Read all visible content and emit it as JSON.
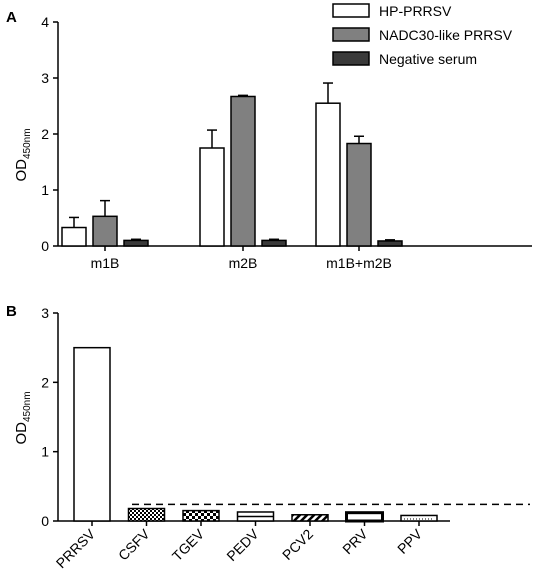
{
  "chart_data": [
    {
      "type": "bar",
      "panel": "A",
      "ylabel": "OD",
      "ylabel_sub": "450nm",
      "ylim": [
        0,
        4
      ],
      "yticks": [
        "0",
        "1",
        "2",
        "3",
        "4"
      ],
      "categories": [
        "m1B",
        "m2B",
        "m1B+m2B"
      ],
      "series": [
        {
          "name": "HP-PRRSV",
          "values": [
            0.33,
            1.75,
            2.55
          ],
          "errors": [
            0.18,
            0.32,
            0.36
          ],
          "color": "#ffffff"
        },
        {
          "name": "NADC30-like PRRSV",
          "values": [
            0.53,
            2.67,
            1.83
          ],
          "errors": [
            0.28,
            0.02,
            0.13
          ],
          "color": "#808080"
        },
        {
          "name": "Negative serum",
          "values": [
            0.1,
            0.1,
            0.09
          ],
          "errors": [
            0.02,
            0.02,
            0.02
          ],
          "color": "#3a3a3a"
        }
      ],
      "legend": "top-right",
      "grid": false
    },
    {
      "type": "bar",
      "panel": "B",
      "ylabel": "OD",
      "ylabel_sub": "450nm",
      "ylim": [
        0,
        3
      ],
      "yticks": [
        "0",
        "1",
        "2",
        "3"
      ],
      "categories": [
        "PRRSV",
        "CSFV",
        "TGEV",
        "PEDV",
        "PCV2",
        "PRV",
        "PPV"
      ],
      "values": [
        2.5,
        0.18,
        0.15,
        0.13,
        0.09,
        0.12,
        0.08
      ],
      "patterns": [
        "none",
        "checker",
        "dense-checker",
        "horizontal-line",
        "diagonal",
        "thick-border",
        "dotted-bottom"
      ],
      "cutoff": 0.24,
      "grid": false
    }
  ]
}
